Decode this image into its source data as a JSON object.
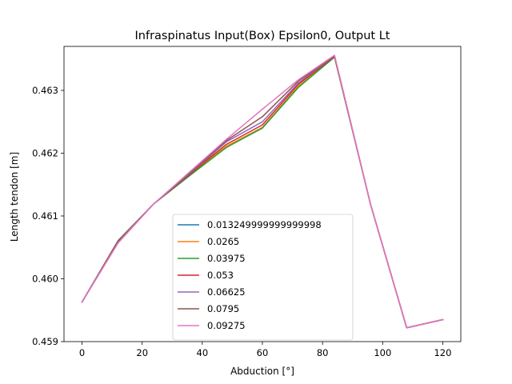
{
  "chart_data": {
    "type": "line",
    "title": "Infraspinatus Input(Box) Epsilon0, Output Lt",
    "xlabel": "Abduction [°]",
    "ylabel": "Length tendon [m]",
    "xlim": [
      -6,
      126
    ],
    "ylim": [
      0.459,
      0.4637
    ],
    "xticks": [
      0,
      20,
      40,
      60,
      80,
      100,
      120
    ],
    "xtick_labels": [
      "0",
      "20",
      "40",
      "60",
      "80",
      "100",
      "120"
    ],
    "yticks": [
      0.459,
      0.46,
      0.461,
      0.462,
      0.463
    ],
    "ytick_labels": [
      "0.459",
      "0.460",
      "0.461",
      "0.462",
      "0.463"
    ],
    "grid": false,
    "legend_position": "lower-center",
    "x": [
      0,
      12,
      24,
      36,
      48,
      60,
      72,
      84,
      96,
      108,
      120
    ],
    "series": [
      {
        "name": "0.013249999999999998",
        "color": "#1f77b4",
        "values": [
          0.45963,
          0.4606,
          0.4612,
          0.46165,
          0.4621,
          0.4624,
          0.46305,
          0.46353,
          0.46118,
          0.45922,
          0.45935
        ]
      },
      {
        "name": "0.0265",
        "color": "#ff7f0e",
        "values": [
          0.45963,
          0.4606,
          0.4612,
          0.46166,
          0.46211,
          0.46241,
          0.46307,
          0.46354,
          0.46118,
          0.45922,
          0.45935
        ]
      },
      {
        "name": "0.03975",
        "color": "#2ca02c",
        "values": [
          0.45963,
          0.46061,
          0.4612,
          0.46165,
          0.46209,
          0.4624,
          0.46305,
          0.46353,
          0.46118,
          0.45922,
          0.45935
        ]
      },
      {
        "name": "0.053",
        "color": "#d62728",
        "values": [
          0.45963,
          0.4606,
          0.4612,
          0.46167,
          0.46214,
          0.46245,
          0.4631,
          0.46354,
          0.46118,
          0.45922,
          0.45935
        ]
      },
      {
        "name": "0.06625",
        "color": "#9467bd",
        "values": [
          0.45963,
          0.46059,
          0.4612,
          0.46168,
          0.46218,
          0.4625,
          0.46312,
          0.46355,
          0.46118,
          0.45922,
          0.45935
        ]
      },
      {
        "name": "0.0795",
        "color": "#8c564b",
        "values": [
          0.45963,
          0.46058,
          0.4612,
          0.46169,
          0.4622,
          0.46258,
          0.46315,
          0.46355,
          0.46118,
          0.45922,
          0.45935
        ]
      },
      {
        "name": "0.09275",
        "color": "#e377c2",
        "values": [
          0.45963,
          0.46057,
          0.4612,
          0.46171,
          0.46222,
          0.4627,
          0.46317,
          0.46356,
          0.46118,
          0.45922,
          0.45935
        ]
      }
    ]
  }
}
